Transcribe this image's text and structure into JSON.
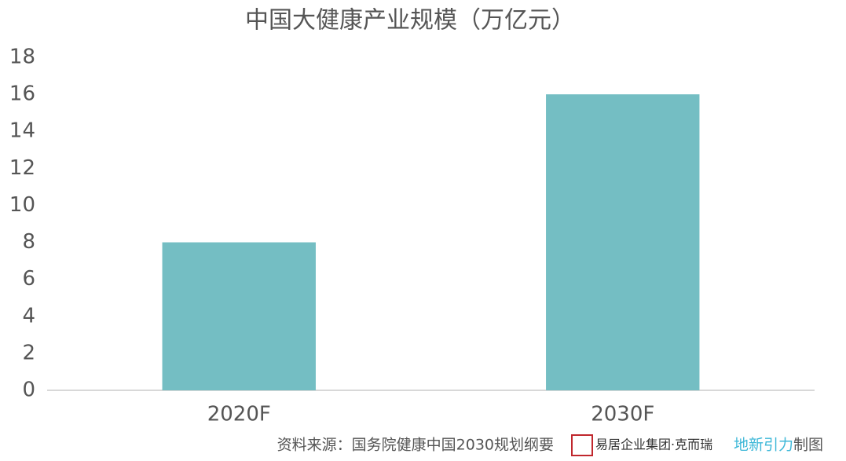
{
  "chart_data": {
    "type": "bar",
    "title": "中国大健康产业规模（万亿元）",
    "categories": [
      "2020F",
      "2030F"
    ],
    "values": [
      8,
      16
    ],
    "color": "#74bec3",
    "ylim": [
      0,
      18
    ],
    "yticks": [
      0,
      2,
      4,
      6,
      8,
      10,
      12,
      14,
      16,
      18
    ],
    "grid": false
  },
  "footer": {
    "source": "资料来源：国务院健康中国2030规划纲要",
    "logo": "易居企业集团·克而瑞",
    "brand": "地新引力",
    "suffix": "制图"
  }
}
